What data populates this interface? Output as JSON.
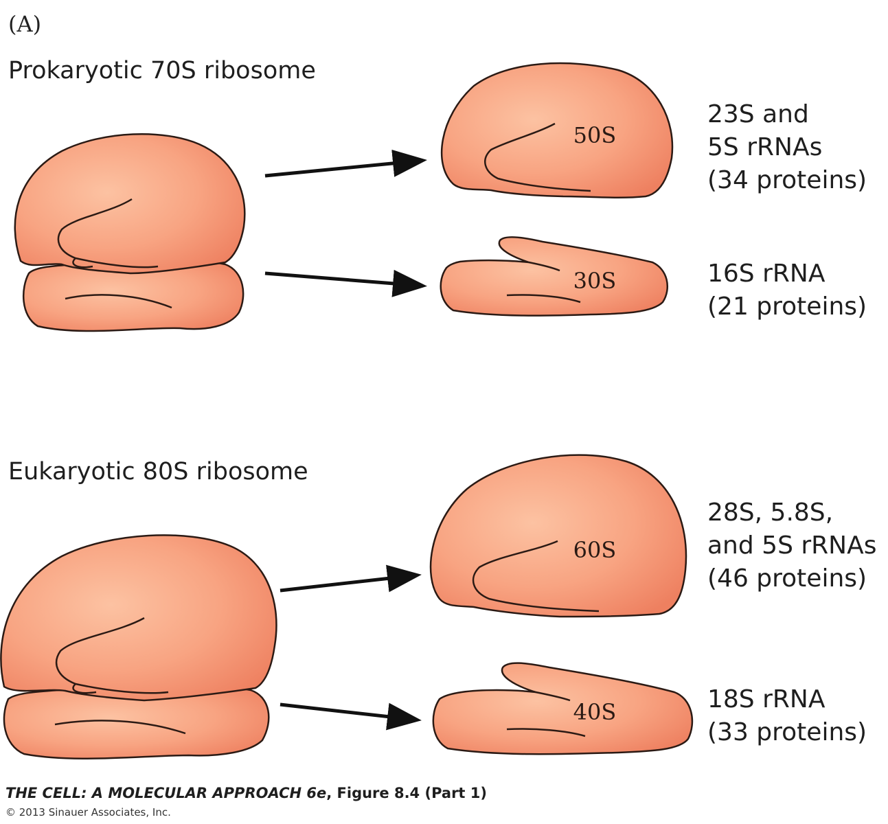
{
  "panel_label": "(A)",
  "prokaryotic": {
    "heading": "Prokaryotic 70S ribosome",
    "large_subunit": {
      "label": "50S",
      "components": [
        "23S and",
        "5S rRNAs",
        "(34 proteins)"
      ]
    },
    "small_subunit": {
      "label": "30S",
      "components": [
        "16S rRNA",
        "(21 proteins)"
      ]
    }
  },
  "eukaryotic": {
    "heading": "Eukaryotic 80S ribosome",
    "large_subunit": {
      "label": "60S",
      "components": [
        "28S, 5.8S,",
        "and 5S rRNAs",
        "(46 proteins)"
      ]
    },
    "small_subunit": {
      "label": "40S",
      "components": [
        "18S rRNA",
        "(33 proteins)"
      ]
    }
  },
  "credit": {
    "title_italic": "THE CELL: A MOLECULAR APPROACH 6e",
    "figure_ref": ", Figure 8.4 (Part 1)",
    "copyright": "© 2013 Sinauer Associates, Inc."
  },
  "colors": {
    "subunit_fill_light": "#fbb996",
    "subunit_fill_dark": "#ee8060",
    "outline": "#2b1a14",
    "arrow": "#111111"
  }
}
